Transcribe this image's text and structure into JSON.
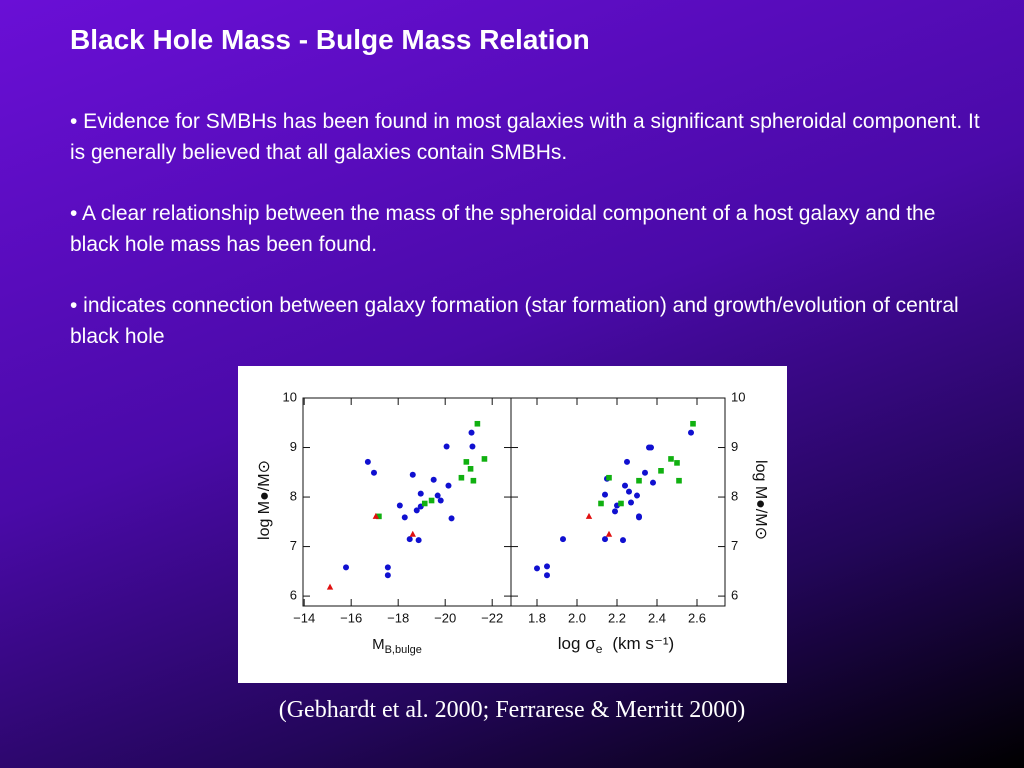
{
  "title": "Black Hole Mass - Bulge Mass Relation",
  "bullets": [
    "• Evidence for SMBHs has been found in most galaxies with a significant spheroidal component. It is generally believed that all galaxies contain SMBHs.",
    "• A clear relationship between the mass of the spheroidal component of a host galaxy and the black hole mass has been found.",
    "• indicates connection between galaxy formation (star formation) and growth/evolution of central black hole"
  ],
  "caption": "(Gebhardt et al. 2000; Ferrarese & Merritt 2000)",
  "chart_data": [
    {
      "type": "scatter",
      "ylabel": "log M●/M⊙",
      "xlabel": [
        "M",
        "B,bulge"
      ],
      "yaxis_side": "left",
      "xlim": [
        -13.95,
        -22.8
      ],
      "ylim": [
        5.8,
        10.0
      ],
      "xticks": [
        {
          "value": -14,
          "label": "−14"
        },
        {
          "value": -16,
          "label": "−16"
        },
        {
          "value": -18,
          "label": "−18"
        },
        {
          "value": -20,
          "label": "−20"
        },
        {
          "value": -22,
          "label": "−22"
        }
      ],
      "yticks": [
        10,
        9,
        8,
        7,
        6
      ],
      "series": [
        {
          "color": "#1010d0",
          "marker": "circle",
          "x": [
            -15.78,
            -16.71,
            -16.97,
            -17.56,
            -17.56,
            -18.07,
            -18.28,
            -18.49,
            -18.62,
            -18.79,
            -18.87,
            -18.96,
            -18.96,
            -19.51,
            -19.68,
            -19.81,
            -20.06,
            -20.14,
            -20.27,
            -21.12,
            -21.16
          ],
          "values": [
            6.58,
            8.71,
            8.49,
            6.58,
            6.42,
            7.83,
            7.59,
            7.15,
            8.45,
            7.73,
            7.13,
            8.07,
            7.81,
            8.35,
            8.03,
            7.93,
            9.02,
            8.23,
            7.57,
            9.3,
            9.02
          ]
        },
        {
          "color": "#10b010",
          "marker": "square",
          "x": [
            -17.18,
            -19.13,
            -19.42,
            -20.69,
            -20.9,
            -21.08,
            -21.2,
            -21.37,
            -21.67
          ],
          "values": [
            7.61,
            7.87,
            7.93,
            8.39,
            8.71,
            8.57,
            8.33,
            9.48,
            8.77
          ]
        },
        {
          "color": "#e01010",
          "marker": "triangle",
          "x": [
            -15.1,
            -17.05,
            -18.62
          ],
          "values": [
            6.18,
            7.61,
            7.25
          ]
        }
      ]
    },
    {
      "type": "scatter",
      "ylabel": "log M●/M⊙",
      "xlabel": [
        "log σ",
        "e",
        "(km s⁻¹)"
      ],
      "yaxis_side": "right",
      "xlim": [
        1.67,
        2.74
      ],
      "ylim": [
        5.8,
        10.0
      ],
      "xticks": [
        1.8,
        {
          "value": 2.0,
          "label": "2.0"
        },
        2.2,
        2.4,
        2.6
      ],
      "yticks": [
        10,
        9,
        8,
        7,
        6
      ],
      "series": [
        {
          "color": "#1010d0",
          "marker": "circle",
          "x": [
            1.8,
            1.85,
            1.85,
            1.93,
            2.14,
            2.14,
            2.15,
            2.19,
            2.2,
            2.23,
            2.24,
            2.25,
            2.26,
            2.27,
            2.3,
            2.31,
            2.31,
            2.34,
            2.36,
            2.37,
            2.38,
            2.57
          ],
          "values": [
            6.56,
            6.6,
            6.42,
            7.15,
            7.15,
            8.05,
            8.37,
            7.71,
            7.83,
            7.13,
            8.23,
            8.71,
            8.11,
            7.89,
            8.03,
            7.61,
            7.59,
            8.49,
            9.0,
            9.0,
            8.29,
            9.3
          ]
        },
        {
          "color": "#10b010",
          "marker": "square",
          "x": [
            2.12,
            2.16,
            2.22,
            2.31,
            2.42,
            2.47,
            2.5,
            2.51,
            2.58
          ],
          "values": [
            7.87,
            8.39,
            7.87,
            8.33,
            8.53,
            8.77,
            8.69,
            8.33,
            9.48
          ]
        },
        {
          "color": "#e01010",
          "marker": "triangle",
          "x": [
            2.06,
            2.16
          ],
          "values": [
            7.61,
            7.25
          ]
        }
      ]
    }
  ]
}
